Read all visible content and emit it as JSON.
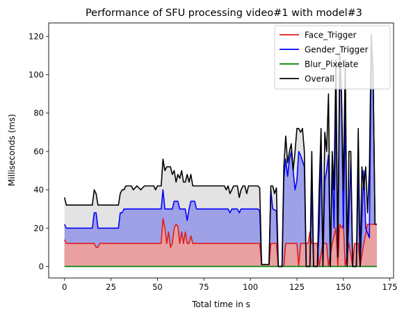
{
  "chart_data": {
    "type": "area",
    "title": "Performance of SFU processing video#1 with model#3",
    "xlabel": "Total time in s",
    "ylabel": "Milliseconds (ms)",
    "xlim": [
      -8.5,
      177
    ],
    "ylim": [
      -6,
      127
    ],
    "xticks": [
      0,
      25,
      50,
      75,
      100,
      125,
      150,
      175
    ],
    "yticks": [
      0,
      20,
      40,
      60,
      80,
      100,
      120
    ],
    "grid": false,
    "legend_position": "top-right",
    "series": [
      {
        "name": "Face_Trigger",
        "color": "#e41a1c",
        "fill": "#e8a0a0",
        "points": [
          [
            0,
            14
          ],
          [
            1,
            12
          ],
          [
            16,
            12
          ],
          [
            17,
            10
          ],
          [
            18,
            10
          ],
          [
            19,
            12
          ],
          [
            52,
            12
          ],
          [
            53,
            25
          ],
          [
            54,
            20
          ],
          [
            55,
            12
          ],
          [
            56,
            18
          ],
          [
            57,
            10
          ],
          [
            58,
            12
          ],
          [
            59,
            20
          ],
          [
            60,
            22
          ],
          [
            61,
            21
          ],
          [
            62,
            12
          ],
          [
            63,
            18
          ],
          [
            64,
            12
          ],
          [
            65,
            18
          ],
          [
            66,
            12
          ],
          [
            67,
            12
          ],
          [
            68,
            16
          ],
          [
            69,
            12
          ],
          [
            104,
            12
          ],
          [
            105,
            12
          ],
          [
            106,
            1
          ],
          [
            110,
            1
          ],
          [
            111,
            12
          ],
          [
            114,
            12
          ],
          [
            115,
            0
          ],
          [
            118,
            0
          ],
          [
            119,
            12
          ],
          [
            125,
            12
          ],
          [
            126,
            0
          ],
          [
            127,
            12
          ],
          [
            131,
            12
          ],
          [
            132,
            18
          ],
          [
            133,
            12
          ],
          [
            136,
            12
          ],
          [
            137,
            0
          ],
          [
            139,
            12
          ],
          [
            141,
            12
          ],
          [
            142,
            0
          ],
          [
            144,
            12
          ],
          [
            146,
            20
          ],
          [
            147,
            0
          ],
          [
            148,
            22
          ],
          [
            149,
            20
          ],
          [
            150,
            22
          ],
          [
            151,
            0
          ],
          [
            153,
            12
          ],
          [
            155,
            0
          ],
          [
            156,
            12
          ],
          [
            158,
            12
          ],
          [
            159,
            0
          ],
          [
            161,
            12
          ],
          [
            163,
            22
          ],
          [
            164,
            22
          ],
          [
            165,
            22
          ],
          [
            166,
            22
          ],
          [
            167,
            22
          ],
          [
            168,
            22
          ]
        ]
      },
      {
        "name": "Gender_Trigger",
        "color": "#0000ff",
        "fill": "#9ea1e6",
        "points": [
          [
            0,
            22
          ],
          [
            1,
            20
          ],
          [
            15,
            20
          ],
          [
            16,
            28
          ],
          [
            17,
            28
          ],
          [
            18,
            20
          ],
          [
            29,
            20
          ],
          [
            30,
            28
          ],
          [
            31,
            28
          ],
          [
            32,
            30
          ],
          [
            52,
            30
          ],
          [
            53,
            40
          ],
          [
            54,
            30
          ],
          [
            58,
            30
          ],
          [
            59,
            34
          ],
          [
            61,
            34
          ],
          [
            62,
            30
          ],
          [
            65,
            30
          ],
          [
            66,
            24
          ],
          [
            67,
            30
          ],
          [
            68,
            34
          ],
          [
            70,
            34
          ],
          [
            71,
            30
          ],
          [
            88,
            30
          ],
          [
            89,
            28
          ],
          [
            90,
            30
          ],
          [
            93,
            30
          ],
          [
            94,
            28
          ],
          [
            95,
            30
          ],
          [
            104,
            30
          ],
          [
            105,
            29
          ],
          [
            106,
            1
          ],
          [
            110,
            1
          ],
          [
            111,
            40
          ],
          [
            112,
            30
          ],
          [
            114,
            29
          ],
          [
            115,
            0
          ],
          [
            117,
            0
          ],
          [
            118,
            46
          ],
          [
            119,
            56
          ],
          [
            120,
            47
          ],
          [
            121,
            56
          ],
          [
            122,
            60
          ],
          [
            123,
            50
          ],
          [
            124,
            40
          ],
          [
            125,
            45
          ],
          [
            126,
            60
          ],
          [
            127,
            58
          ],
          [
            128,
            55
          ],
          [
            129,
            52
          ],
          [
            130,
            0
          ],
          [
            132,
            0
          ],
          [
            133,
            40
          ],
          [
            134,
            0
          ],
          [
            136,
            0
          ],
          [
            137,
            20
          ],
          [
            138,
            60
          ],
          [
            139,
            0
          ],
          [
            140,
            45
          ],
          [
            141,
            50
          ],
          [
            142,
            58
          ],
          [
            143,
            0
          ],
          [
            144,
            54
          ],
          [
            145,
            20
          ],
          [
            146,
            88
          ],
          [
            147,
            5
          ],
          [
            148,
            100
          ],
          [
            149,
            90
          ],
          [
            150,
            20
          ],
          [
            151,
            82
          ],
          [
            152,
            0
          ],
          [
            154,
            55
          ],
          [
            155,
            0
          ],
          [
            157,
            0
          ],
          [
            158,
            50
          ],
          [
            159,
            0
          ],
          [
            161,
            50
          ],
          [
            162,
            20
          ],
          [
            164,
            15
          ],
          [
            165,
            116
          ],
          [
            166,
            100
          ],
          [
            167,
            22
          ],
          [
            168,
            22
          ]
        ]
      },
      {
        "name": "Blur_Pixelate",
        "color": "#008000",
        "fill": "#a070a8",
        "points": [
          [
            0,
            0
          ],
          [
            168,
            0
          ]
        ]
      },
      {
        "name": "Overall",
        "color": "#000000",
        "fill": "#e3e3e3",
        "points": [
          [
            0,
            36
          ],
          [
            1,
            32
          ],
          [
            15,
            32
          ],
          [
            16,
            40
          ],
          [
            17,
            38
          ],
          [
            18,
            32
          ],
          [
            29,
            32
          ],
          [
            30,
            38
          ],
          [
            31,
            40
          ],
          [
            32,
            40
          ],
          [
            33,
            42
          ],
          [
            36,
            42
          ],
          [
            37,
            40
          ],
          [
            39,
            42
          ],
          [
            41,
            40
          ],
          [
            43,
            42
          ],
          [
            48,
            42
          ],
          [
            49,
            40
          ],
          [
            50,
            42
          ],
          [
            52,
            42
          ],
          [
            53,
            56
          ],
          [
            54,
            50
          ],
          [
            55,
            52
          ],
          [
            57,
            52
          ],
          [
            58,
            48
          ],
          [
            59,
            50
          ],
          [
            60,
            44
          ],
          [
            61,
            48
          ],
          [
            62,
            46
          ],
          [
            63,
            50
          ],
          [
            64,
            44
          ],
          [
            65,
            44
          ],
          [
            66,
            48
          ],
          [
            67,
            44
          ],
          [
            68,
            48
          ],
          [
            69,
            42
          ],
          [
            86,
            42
          ],
          [
            87,
            40
          ],
          [
            88,
            42
          ],
          [
            89,
            38
          ],
          [
            90,
            40
          ],
          [
            91,
            42
          ],
          [
            93,
            42
          ],
          [
            94,
            36
          ],
          [
            95,
            40
          ],
          [
            96,
            42
          ],
          [
            97,
            42
          ],
          [
            98,
            38
          ],
          [
            99,
            42
          ],
          [
            104,
            42
          ],
          [
            105,
            41
          ],
          [
            106,
            1
          ],
          [
            110,
            1
          ],
          [
            111,
            42
          ],
          [
            112,
            42
          ],
          [
            113,
            38
          ],
          [
            114,
            41
          ],
          [
            115,
            0
          ],
          [
            117,
            0
          ],
          [
            118,
            52
          ],
          [
            119,
            68
          ],
          [
            120,
            54
          ],
          [
            121,
            60
          ],
          [
            122,
            64
          ],
          [
            123,
            50
          ],
          [
            124,
            60
          ],
          [
            125,
            72
          ],
          [
            126,
            72
          ],
          [
            127,
            70
          ],
          [
            128,
            72
          ],
          [
            129,
            60
          ],
          [
            130,
            0
          ],
          [
            132,
            0
          ],
          [
            133,
            60
          ],
          [
            134,
            0
          ],
          [
            136,
            0
          ],
          [
            137,
            40
          ],
          [
            138,
            72
          ],
          [
            139,
            0
          ],
          [
            140,
            70
          ],
          [
            141,
            60
          ],
          [
            142,
            90
          ],
          [
            143,
            0
          ],
          [
            144,
            60
          ],
          [
            145,
            40
          ],
          [
            146,
            108
          ],
          [
            147,
            5
          ],
          [
            148,
            112
          ],
          [
            149,
            90
          ],
          [
            150,
            40
          ],
          [
            151,
            108
          ],
          [
            152,
            0
          ],
          [
            153,
            60
          ],
          [
            154,
            60
          ],
          [
            155,
            0
          ],
          [
            157,
            0
          ],
          [
            158,
            72
          ],
          [
            159,
            0
          ],
          [
            160,
            52
          ],
          [
            161,
            40
          ],
          [
            162,
            52
          ],
          [
            163,
            28
          ],
          [
            164,
            50
          ],
          [
            165,
            121
          ],
          [
            166,
            100
          ],
          [
            167,
            22
          ],
          [
            168,
            22
          ]
        ]
      }
    ]
  }
}
